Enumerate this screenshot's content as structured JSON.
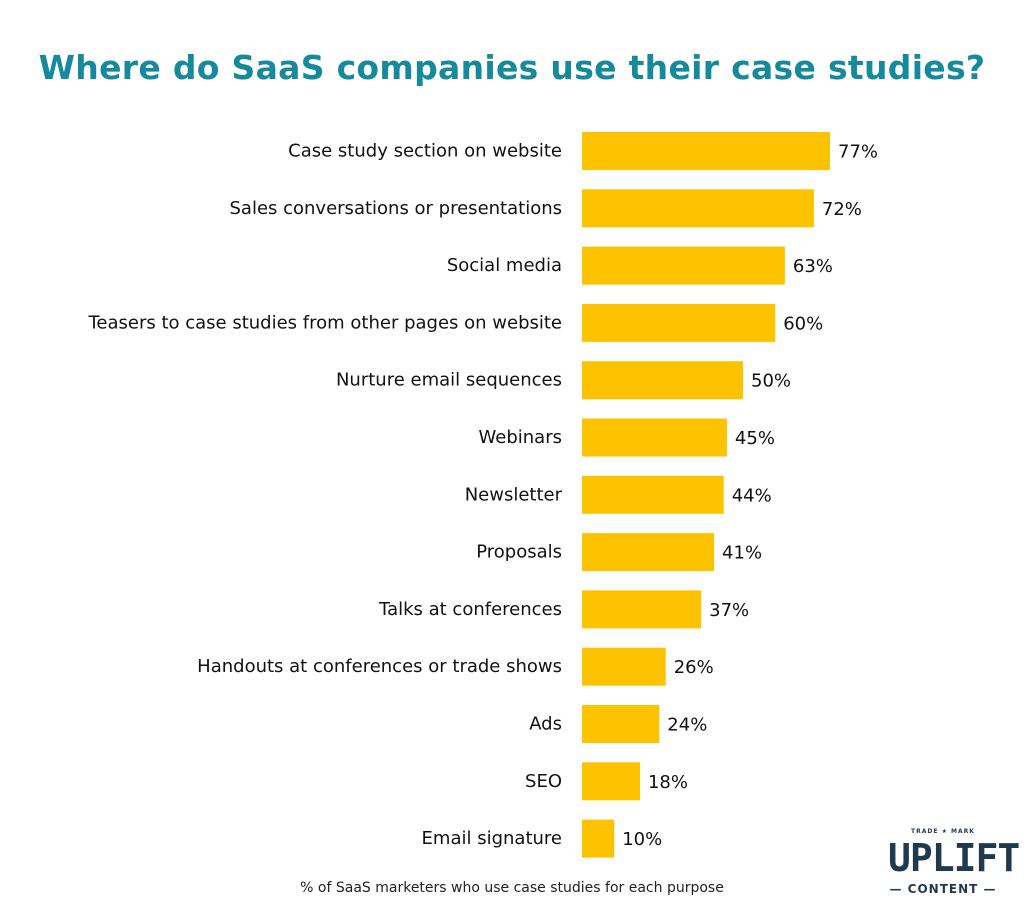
{
  "chart_data": {
    "type": "bar",
    "orientation": "horizontal",
    "title": "Where do SaaS companies use their case studies?",
    "caption": "% of SaaS marketers who use case studies for each purpose",
    "categories": [
      "Case study section on website",
      "Sales conversations or presentations",
      "Social media",
      "Teasers to case studies from other pages on website",
      "Nurture email sequences",
      "Webinars",
      "Newsletter",
      "Proposals",
      "Talks at conferences",
      "Handouts at conferences or trade shows",
      "Ads",
      "SEO",
      "Email signature"
    ],
    "values": [
      77,
      72,
      63,
      60,
      50,
      45,
      44,
      41,
      37,
      26,
      24,
      18,
      10
    ],
    "data_labels": [
      "77%",
      "72%",
      "63%",
      "60%",
      "50%",
      "45%",
      "44%",
      "41%",
      "37%",
      "26%",
      "24%",
      "18%",
      "10%"
    ],
    "xlim": [
      0,
      100
    ],
    "grid": false,
    "legend": "none",
    "bar_color": "#fdc200",
    "title_color": "#148a9c"
  },
  "logo": {
    "top_text": "TRADE ★ MARK",
    "main_text": "UPLIFT",
    "sub_text": "— CONTENT —",
    "color": "#1f3a4d"
  }
}
